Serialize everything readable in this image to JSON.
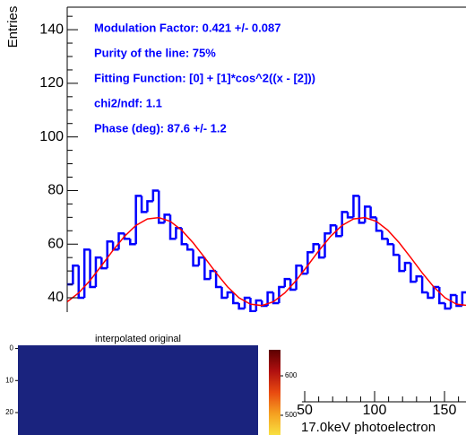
{
  "chart_data": [
    {
      "type": "histogram",
      "y_label": "Entries",
      "annotations": [
        "Modulation Factor: 0.421 +/- 0.087",
        "Purity of the line: 75%",
        "Fitting Function: [0] + [1]*cos^2((x - [2]))",
        "chi2/ndf: 1.1",
        "Phase (deg): 87.6 +/- 1.2"
      ],
      "annotation_color": "#0000ff",
      "bins": [
        10,
        15,
        20,
        25,
        30,
        35,
        40,
        45,
        50,
        55,
        60,
        65,
        70,
        75,
        80,
        85,
        90,
        95,
        100,
        105,
        110,
        115,
        120,
        125,
        130,
        135,
        140,
        145,
        150,
        155,
        160,
        165,
        170,
        175,
        180,
        185,
        190,
        195,
        200,
        205,
        210,
        215,
        220,
        225,
        230,
        235,
        240,
        245,
        250,
        255,
        260,
        265,
        270,
        275,
        280,
        285,
        290,
        295,
        300,
        305,
        310,
        315,
        320,
        325,
        330,
        335,
        340,
        345,
        350,
        355,
        360,
        365,
        370
      ],
      "values": [
        45,
        52,
        40,
        58,
        44,
        55,
        51,
        61,
        58,
        64,
        62,
        60,
        78,
        72,
        76,
        80,
        68,
        71,
        62,
        66,
        60,
        58,
        52,
        55,
        47,
        50,
        44,
        40,
        42,
        38,
        36,
        40,
        35,
        39,
        37,
        42,
        38,
        44,
        47,
        43,
        52,
        49,
        57,
        60,
        55,
        64,
        67,
        63,
        72,
        70,
        78,
        68,
        74,
        70,
        65,
        62,
        60,
        56,
        50,
        53,
        46,
        48,
        42,
        40,
        44,
        38,
        36,
        41,
        37,
        42,
        39,
        45
      ],
      "color": "#0000ff",
      "fit": {
        "color": "#ff0000",
        "x": [
          10,
          20,
          30,
          40,
          50,
          60,
          70,
          80,
          90,
          100,
          110,
          120,
          130,
          140,
          150,
          160,
          170,
          180,
          190,
          200,
          210,
          220,
          230,
          240,
          250,
          260,
          270,
          280,
          290,
          300,
          310,
          320,
          330,
          340,
          350,
          360,
          370
        ],
        "values": [
          38.5,
          41.8,
          46.5,
          52.0,
          57.7,
          62.9,
          67.0,
          69.4,
          69.9,
          68.5,
          65.2,
          60.5,
          55.0,
          49.3,
          44.1,
          40.0,
          37.6,
          37.1,
          38.5,
          41.8,
          46.5,
          52.0,
          57.7,
          62.9,
          67.0,
          69.4,
          69.9,
          68.5,
          65.2,
          60.5,
          55.0,
          49.3,
          44.1,
          40.0,
          37.6,
          37.1,
          38.5
        ]
      },
      "xlim": [
        10,
        370
      ],
      "ylim": [
        34.65,
        148.4
      ],
      "yticks": [
        40,
        60,
        80,
        100,
        120,
        140
      ],
      "yminorticks": [
        45,
        50,
        55,
        65,
        70,
        75,
        85,
        90,
        95,
        105,
        110,
        115,
        125,
        130,
        135,
        145
      ]
    },
    {
      "type": "heatmap",
      "title": "interpolated original",
      "color": "#1a237e",
      "ylim": [
        -1,
        27
      ],
      "yticks": [
        0,
        10,
        20
      ],
      "clim": [
        450,
        666
      ],
      "cticks": [
        500,
        600
      ],
      "colorbar_colors": [
        "#5c0000",
        "#b01010",
        "#e84a10",
        "#f5a020",
        "#f8e040"
      ]
    },
    {
      "type": "axis",
      "x_label": "17.0keV photoelectron",
      "xlim": [
        48,
        165
      ],
      "xticks": [
        50,
        100,
        150
      ],
      "xminorticks": [
        60,
        70,
        80,
        90,
        110,
        120,
        130,
        140,
        160
      ]
    }
  ]
}
